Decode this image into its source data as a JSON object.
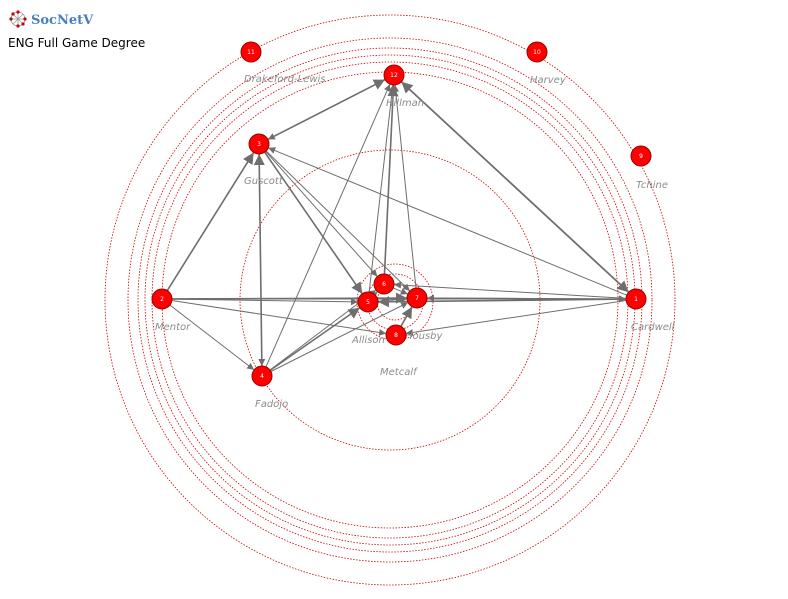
{
  "app": {
    "name": "SocNetV",
    "subtitle": "ENG Full Game Degree"
  },
  "colors": {
    "node": "#ff0000",
    "node_stroke": "#990000",
    "edge": "#6e6e6e",
    "ring": "#cc0000",
    "label": "#8c8c8c"
  },
  "nodes": [
    {
      "id": "1",
      "label": "Cardwell"
    },
    {
      "id": "2",
      "label": "Mentor"
    },
    {
      "id": "3",
      "label": "Guscott"
    },
    {
      "id": "4",
      "label": "Fadojo"
    },
    {
      "id": "5",
      "label": "Allison"
    },
    {
      "id": "6",
      "label": ""
    },
    {
      "id": "7",
      "label": "Housby"
    },
    {
      "id": "8",
      "label": "Metcalf"
    },
    {
      "id": "9",
      "label": "Tchine"
    },
    {
      "id": "10",
      "label": "Harvey"
    },
    {
      "id": "11",
      "label": "Drakeford-Lewis"
    },
    {
      "id": "12",
      "label": "Hillman"
    }
  ],
  "edges": [
    [
      "1",
      "12"
    ],
    [
      "1",
      "3"
    ],
    [
      "1",
      "7"
    ],
    [
      "1",
      "5"
    ],
    [
      "1",
      "8"
    ],
    [
      "1",
      "6"
    ],
    [
      "2",
      "3"
    ],
    [
      "2",
      "4"
    ],
    [
      "2",
      "5"
    ],
    [
      "2",
      "7"
    ],
    [
      "2",
      "1"
    ],
    [
      "2",
      "8"
    ],
    [
      "3",
      "5"
    ],
    [
      "3",
      "7"
    ],
    [
      "3",
      "4"
    ],
    [
      "3",
      "12"
    ],
    [
      "3",
      "6"
    ],
    [
      "4",
      "12"
    ],
    [
      "4",
      "5"
    ],
    [
      "4",
      "7"
    ],
    [
      "4",
      "6"
    ],
    [
      "4",
      "3"
    ],
    [
      "5",
      "12"
    ],
    [
      "5",
      "7"
    ],
    [
      "6",
      "12"
    ],
    [
      "7",
      "12"
    ],
    [
      "12",
      "3"
    ],
    [
      "12",
      "1"
    ],
    [
      "5",
      "6"
    ],
    [
      "6",
      "7"
    ],
    [
      "8",
      "7"
    ],
    [
      "7",
      "1"
    ]
  ]
}
